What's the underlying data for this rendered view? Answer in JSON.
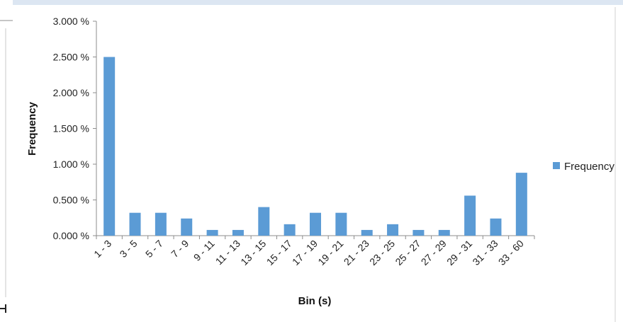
{
  "chart_data": {
    "type": "bar",
    "categories": [
      "1 - 3",
      "3 - 5",
      "5 - 7",
      "7 - 9",
      "9 - 11",
      "11 - 13",
      "13 - 15",
      "15 - 17",
      "17 - 19",
      "19 - 21",
      "21 - 23",
      "23 - 25",
      "25 - 27",
      "27 - 29",
      "29 - 31",
      "31 - 33",
      "33 - 60"
    ],
    "series": [
      {
        "name": "Frequency",
        "color": "#5b9bd5",
        "values": [
          2.5,
          0.32,
          0.32,
          0.24,
          0.08,
          0.08,
          0.4,
          0.16,
          0.32,
          0.32,
          0.08,
          0.16,
          0.08,
          0.08,
          0.56,
          0.24,
          0.88
        ]
      }
    ],
    "yticks": [
      0,
      0.5,
      1.0,
      1.5,
      2.0,
      2.5,
      3.0
    ],
    "ytick_labels": [
      "0.000 %",
      "0.500 %",
      "1.000 %",
      "1.500 %",
      "2.000 %",
      "2.500 %",
      "3.000 %"
    ],
    "ylim": [
      0,
      3.0
    ],
    "xlabel": "Bin (s)",
    "ylabel": "Frequency",
    "title": "",
    "grid": false,
    "legend_position": "right"
  }
}
